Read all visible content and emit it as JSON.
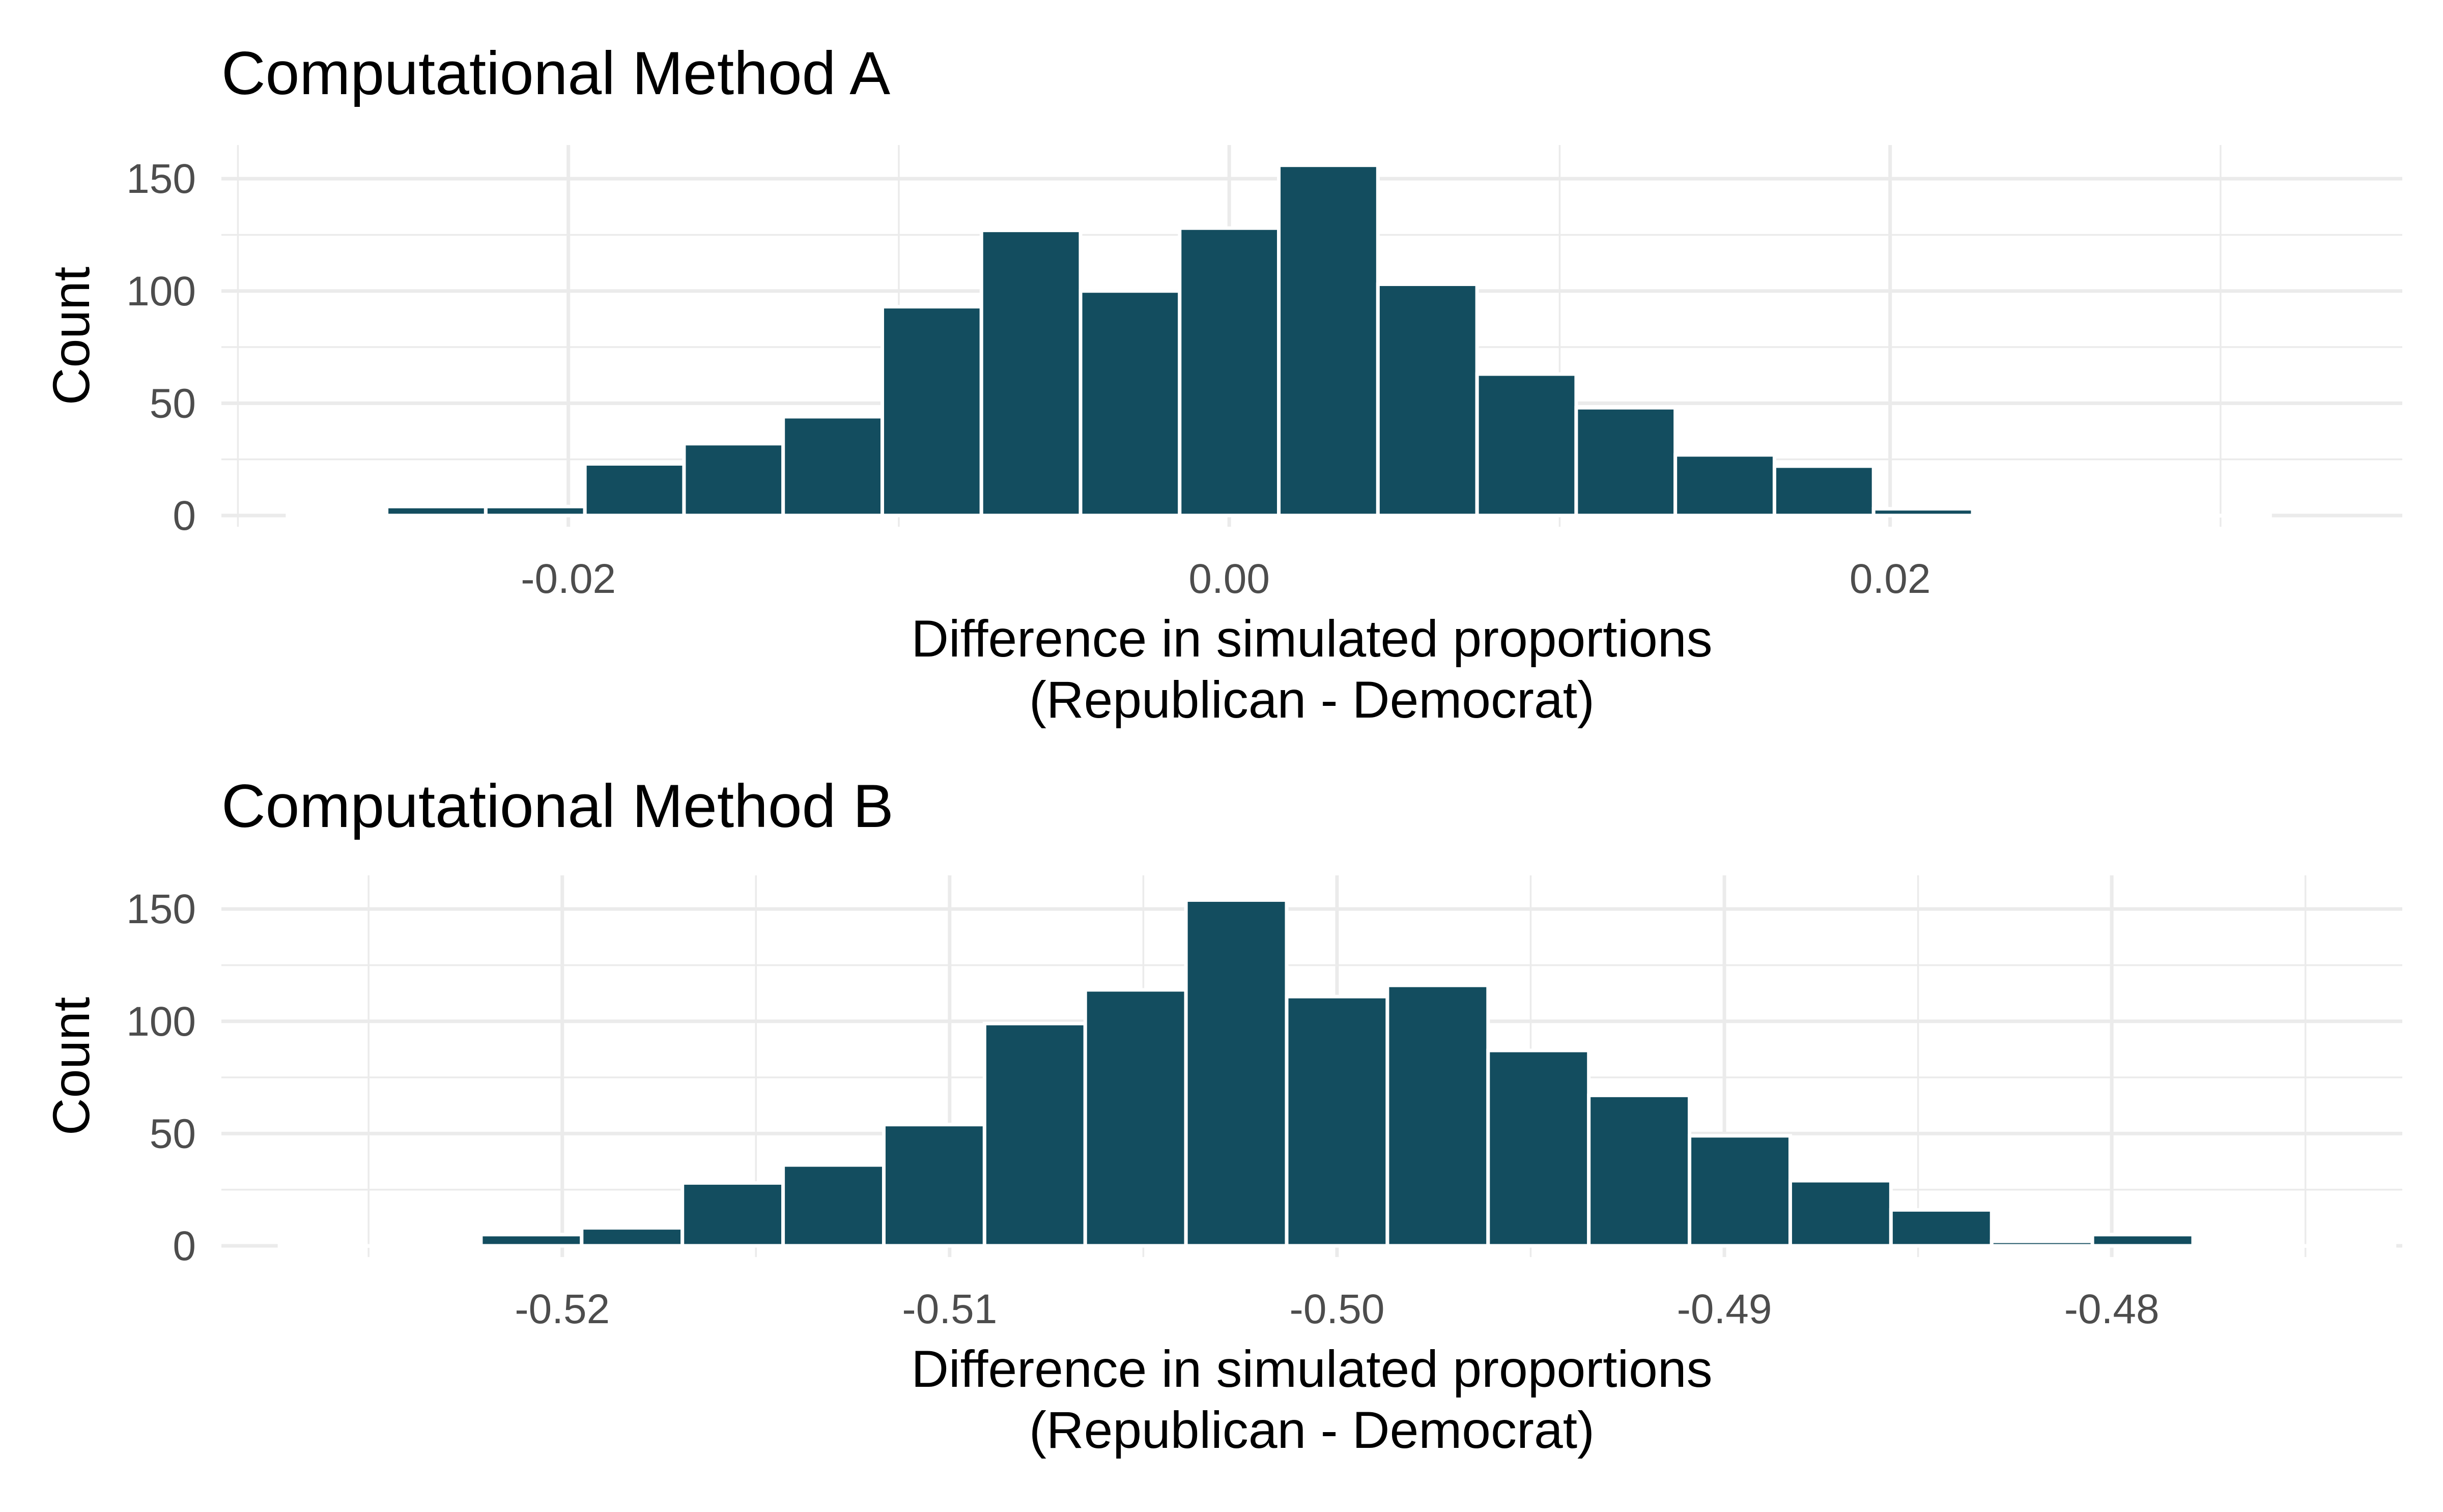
{
  "chart_data": [
    {
      "type": "bar",
      "title": "Computational Method A",
      "xlabel_line1": "Difference in simulated proportions",
      "xlabel_line2": "(Republican - Democrat)",
      "ylabel": "Count",
      "bin_width": 0.003,
      "xlim": [
        -0.0305,
        0.0355
      ],
      "ylim": [
        -5,
        165
      ],
      "x_ticks": [
        -0.02,
        0.0,
        0.02
      ],
      "x_tick_labels": [
        "-0.02",
        "0.00",
        "0.02"
      ],
      "x_minor_ticks": [
        -0.03,
        -0.01,
        0.01,
        0.03
      ],
      "y_ticks": [
        0,
        50,
        100,
        150
      ],
      "y_tick_labels": [
        "0",
        "50",
        "100",
        "150"
      ],
      "y_minor_ticks": [
        25,
        75,
        125
      ],
      "grid": true,
      "bar_color": "#134D5F",
      "bin_centers": [
        -0.027,
        -0.024,
        -0.021,
        -0.018,
        -0.015,
        -0.012,
        -0.009,
        -0.006,
        -0.003,
        0.0,
        0.003,
        0.006,
        0.009,
        0.012,
        0.015,
        0.018,
        0.021,
        0.024,
        0.027,
        0.03
      ],
      "values": [
        1,
        4,
        4,
        23,
        32,
        44,
        93,
        127,
        100,
        128,
        156,
        103,
        63,
        48,
        27,
        22,
        3,
        0,
        0,
        0
      ]
    },
    {
      "type": "bar",
      "title": "Computational Method B",
      "xlabel_line1": "Difference in simulated proportions",
      "xlabel_line2": "(Republican - Democrat)",
      "ylabel": "Count",
      "bin_width": 0.0026,
      "xlim": [
        -0.5288,
        -0.4725
      ],
      "ylim": [
        -5,
        165
      ],
      "x_ticks": [
        -0.52,
        -0.51,
        -0.5,
        -0.49,
        -0.48
      ],
      "x_tick_labels": [
        "-0.52",
        "-0.51",
        "-0.50",
        "-0.49",
        "-0.48"
      ],
      "x_minor_ticks": [
        -0.525,
        -0.515,
        -0.505,
        -0.495,
        -0.485,
        -0.475
      ],
      "y_ticks": [
        0,
        50,
        100,
        150
      ],
      "y_tick_labels": [
        "0",
        "50",
        "100",
        "150"
      ],
      "y_minor_ticks": [
        25,
        75,
        125
      ],
      "grid": true,
      "bar_color": "#134D5F",
      "bin_centers": [
        -0.526,
        -0.5234,
        -0.5208,
        -0.5182,
        -0.5156,
        -0.513,
        -0.5104,
        -0.5078,
        -0.5052,
        -0.5026,
        -0.5,
        -0.4974,
        -0.4948,
        -0.4922,
        -0.4896,
        -0.487,
        -0.4844,
        -0.4818,
        -0.4792,
        -0.4766,
        -0.474
      ],
      "values": [
        0,
        0,
        5,
        8,
        28,
        36,
        54,
        99,
        114,
        154,
        111,
        116,
        87,
        67,
        49,
        29,
        16,
        2,
        5,
        0,
        0
      ]
    }
  ]
}
